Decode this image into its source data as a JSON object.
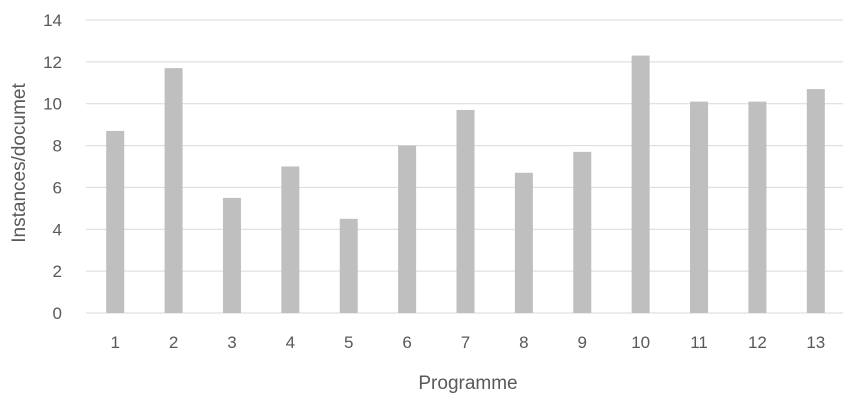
{
  "chart_data": {
    "type": "bar",
    "title": "",
    "xlabel": "Programme",
    "ylabel": "Instances/documet",
    "categories": [
      "1",
      "2",
      "3",
      "4",
      "5",
      "6",
      "7",
      "8",
      "9",
      "10",
      "11",
      "12",
      "13"
    ],
    "values": [
      8.7,
      11.7,
      5.5,
      7.0,
      4.5,
      8.0,
      9.7,
      6.7,
      7.7,
      12.3,
      10.1,
      10.1,
      10.7
    ],
    "ylim": [
      0,
      14
    ],
    "yticks": [
      0,
      2,
      4,
      6,
      8,
      10,
      12,
      14
    ],
    "grid": true,
    "legend": "none",
    "bar_color": "#bfbfbf",
    "grid_color": "#d9d9d9",
    "text_color": "#595959"
  }
}
